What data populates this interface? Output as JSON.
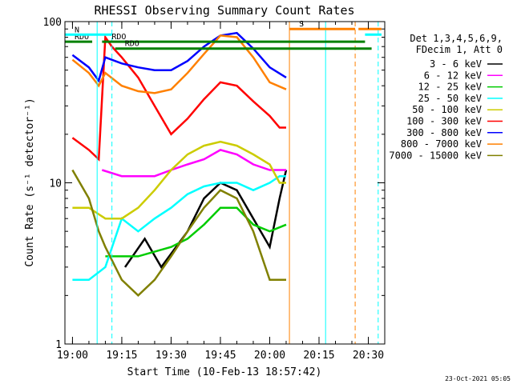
{
  "chart_data": {
    "type": "line",
    "title": "RHESSI Observing Summary Count Rates",
    "xlabel": "Start Time (10-Feb-13 18:57:42)",
    "ylabel": "Count Rate (s⁻¹ detector⁻¹)",
    "y_scale": "log",
    "ylim": [
      1,
      100
    ],
    "xlim": [
      "18:57:42",
      "20:35:00"
    ],
    "x_ticks": [
      "19:00",
      "19:15",
      "19:30",
      "19:45",
      "20:00",
      "20:15",
      "20:30"
    ],
    "y_ticks": [
      "1",
      "10",
      "100"
    ],
    "x_minor_every_min": 5,
    "legend_position": "right",
    "legend_header": [
      "Det 1,3,4,5,6,9,",
      "FDecim 1, Att 0"
    ],
    "footer_date": "23-Oct-2021 05:05",
    "series": [
      {
        "name": "3 - 6 keV",
        "color": "#000000",
        "points": [
          [
            "19:16",
            3
          ],
          [
            "19:22",
            4.5
          ],
          [
            "19:27",
            3
          ],
          [
            "19:35",
            5
          ],
          [
            "19:40",
            8
          ],
          [
            "19:45",
            10
          ],
          [
            "19:50",
            9
          ],
          [
            "19:55",
            6
          ],
          [
            "20:00",
            4
          ],
          [
            "20:03",
            8
          ],
          [
            "20:05",
            12
          ]
        ]
      },
      {
        "name": "6 - 12 keV",
        "color": "#ff00ff",
        "points": [
          [
            "19:09",
            12
          ],
          [
            "19:15",
            11
          ],
          [
            "19:25",
            11
          ],
          [
            "19:30",
            12
          ],
          [
            "19:35",
            13
          ],
          [
            "19:40",
            14
          ],
          [
            "19:45",
            16
          ],
          [
            "19:50",
            15
          ],
          [
            "19:55",
            13
          ],
          [
            "20:00",
            12
          ],
          [
            "20:05",
            12
          ]
        ]
      },
      {
        "name": "12 - 25 keV",
        "color": "#00cc00",
        "points": [
          [
            "19:10",
            3.5
          ],
          [
            "19:20",
            3.5
          ],
          [
            "19:30",
            4
          ],
          [
            "19:35",
            4.5
          ],
          [
            "19:40",
            5.5
          ],
          [
            "19:45",
            7
          ],
          [
            "19:50",
            7
          ],
          [
            "19:55",
            5.5
          ],
          [
            "20:00",
            5
          ],
          [
            "20:05",
            5.5
          ]
        ]
      },
      {
        "name": "25 - 50 keV",
        "color": "#00ffff",
        "points": [
          [
            "19:00",
            2.5
          ],
          [
            "19:05",
            2.5
          ],
          [
            "19:10",
            3
          ],
          [
            "19:15",
            6
          ],
          [
            "19:20",
            5
          ],
          [
            "19:25",
            6
          ],
          [
            "19:30",
            7
          ],
          [
            "19:35",
            8.5
          ],
          [
            "19:40",
            9.5
          ],
          [
            "19:45",
            10
          ],
          [
            "19:50",
            10
          ],
          [
            "19:55",
            9
          ],
          [
            "20:00",
            10
          ],
          [
            "20:03",
            11
          ],
          [
            "20:05",
            11
          ]
        ]
      },
      {
        "name": "50 - 100 keV",
        "color": "#cccc00",
        "points": [
          [
            "19:00",
            7
          ],
          [
            "19:05",
            7
          ],
          [
            "19:10",
            6
          ],
          [
            "19:15",
            6
          ],
          [
            "19:20",
            7
          ],
          [
            "19:25",
            9
          ],
          [
            "19:30",
            12
          ],
          [
            "19:35",
            15
          ],
          [
            "19:40",
            17
          ],
          [
            "19:45",
            18
          ],
          [
            "19:50",
            17
          ],
          [
            "19:55",
            15
          ],
          [
            "20:00",
            13
          ],
          [
            "20:03",
            10
          ],
          [
            "20:05",
            10
          ]
        ]
      },
      {
        "name": "100 - 300 keV",
        "color": "#ff0000",
        "points": [
          [
            "19:00",
            19
          ],
          [
            "19:05",
            16
          ],
          [
            "19:08",
            14
          ],
          [
            "19:10",
            80
          ],
          [
            "19:12",
            70
          ],
          [
            "19:15",
            60
          ],
          [
            "19:20",
            45
          ],
          [
            "19:25",
            30
          ],
          [
            "19:30",
            20
          ],
          [
            "19:35",
            25
          ],
          [
            "19:40",
            33
          ],
          [
            "19:45",
            42
          ],
          [
            "19:50",
            40
          ],
          [
            "19:55",
            32
          ],
          [
            "20:00",
            26
          ],
          [
            "20:03",
            22
          ],
          [
            "20:05",
            22
          ]
        ]
      },
      {
        "name": "300 - 800 keV",
        "color": "#0000ff",
        "points": [
          [
            "19:00",
            62
          ],
          [
            "19:05",
            52
          ],
          [
            "19:08",
            43
          ],
          [
            "19:10",
            60
          ],
          [
            "19:15",
            55
          ],
          [
            "19:20",
            52
          ],
          [
            "19:25",
            50
          ],
          [
            "19:30",
            50
          ],
          [
            "19:35",
            57
          ],
          [
            "19:40",
            70
          ],
          [
            "19:45",
            82
          ],
          [
            "19:50",
            85
          ],
          [
            "19:55",
            68
          ],
          [
            "20:00",
            52
          ],
          [
            "20:05",
            45
          ]
        ]
      },
      {
        "name": "800 - 7000 keV",
        "color": "#ff8000",
        "points": [
          [
            "19:00",
            58
          ],
          [
            "19:05",
            48
          ],
          [
            "19:08",
            40
          ],
          [
            "19:10",
            48
          ],
          [
            "19:15",
            40
          ],
          [
            "19:20",
            37
          ],
          [
            "19:25",
            36
          ],
          [
            "19:30",
            38
          ],
          [
            "19:35",
            48
          ],
          [
            "19:40",
            63
          ],
          [
            "19:45",
            82
          ],
          [
            "19:50",
            80
          ],
          [
            "19:55",
            60
          ],
          [
            "20:00",
            42
          ],
          [
            "20:05",
            38
          ]
        ]
      },
      {
        "name": "7000 - 15000 keV",
        "color": "#808000",
        "points": [
          [
            "19:00",
            12
          ],
          [
            "19:05",
            8
          ],
          [
            "19:08",
            5
          ],
          [
            "19:10",
            4
          ],
          [
            "19:15",
            2.5
          ],
          [
            "19:20",
            2
          ],
          [
            "19:25",
            2.5
          ],
          [
            "19:30",
            3.5
          ],
          [
            "19:35",
            5
          ],
          [
            "19:40",
            7
          ],
          [
            "19:45",
            9
          ],
          [
            "19:50",
            8
          ],
          [
            "19:55",
            5
          ],
          [
            "20:00",
            2.5
          ],
          [
            "20:05",
            2.5
          ]
        ]
      }
    ],
    "markers": [
      {
        "label": "RDO",
        "color": "#008000",
        "from": "18:57:42",
        "to": "19:06",
        "y": 75
      },
      {
        "label": "RDO",
        "color": "#008000",
        "from": "19:09",
        "to": "20:29",
        "y": 75
      },
      {
        "label": "RDO",
        "color": "#008000",
        "from": "19:13",
        "to": "20:31",
        "y": 68
      },
      {
        "label": "N",
        "color": "#00ffff",
        "from": "18:57:42",
        "to": "19:12",
        "y": 83
      },
      {
        "label": "",
        "color": "#00ffff",
        "from": "20:29",
        "to": "20:34",
        "y": 83
      },
      {
        "label": "S",
        "color": "#ff8000",
        "from": "20:06",
        "to": "20:26",
        "y": 90
      },
      {
        "label": "",
        "color": "#ff8000",
        "from": "20:27",
        "to": "20:34",
        "y": 90
      }
    ],
    "vlines": [
      {
        "t": "19:07:30",
        "color": "#00ffff",
        "style": "solid"
      },
      {
        "t": "19:12:00",
        "color": "#00ffff",
        "style": "dashed"
      },
      {
        "t": "20:06:00",
        "color": "#ff8000",
        "style": "solid"
      },
      {
        "t": "20:17:00",
        "color": "#00ffff",
        "style": "solid"
      },
      {
        "t": "20:26:00",
        "color": "#ff8000",
        "style": "dashed"
      },
      {
        "t": "20:33:00",
        "color": "#00ffff",
        "style": "dashed"
      }
    ]
  }
}
